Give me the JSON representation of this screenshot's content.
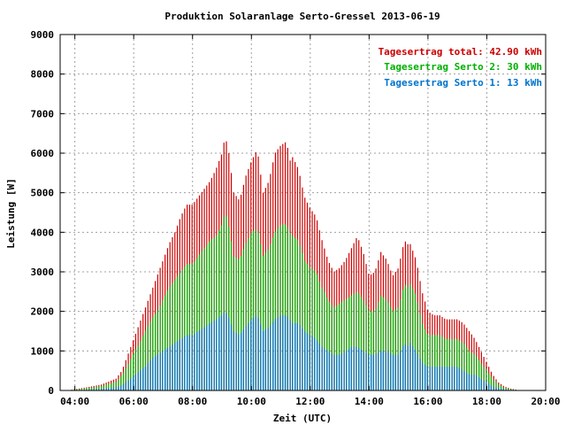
{
  "chart_data": {
    "type": "bar",
    "title": "Produktion Solaranlage Serto-Gressel 2013-06-19",
    "xlabel": "Zeit (UTC)",
    "ylabel": "Leistung [W]",
    "xlim": [
      3.5,
      20.0
    ],
    "ylim": [
      0,
      9000
    ],
    "x_ticks": [
      "04:00",
      "06:00",
      "08:00",
      "10:00",
      "12:00",
      "14:00",
      "16:00",
      "18:00",
      "20:00"
    ],
    "y_ticks": [
      "0",
      "1000",
      "2000",
      "3000",
      "4000",
      "5000",
      "6000",
      "7000",
      "8000",
      "9000"
    ],
    "grid": true,
    "legend_position": "top-right",
    "legend": [
      {
        "text": "Tagesertrag total: 42.90 kWh",
        "color": "#cc0000"
      },
      {
        "text": "Tagesertrag Serto 2: 30 kWh",
        "color": "#00b000"
      },
      {
        "text": "Tagesertrag Serto 1: 13 kWh",
        "color": "#0073cc"
      }
    ],
    "colors": {
      "total": "#cc0000",
      "serto2": "#00b000",
      "serto1": "#0073cc"
    },
    "x_hours": [
      3.9,
      4.4,
      4.9,
      5.4,
      5.6,
      5.8,
      6.0,
      6.2,
      6.4,
      6.6,
      6.8,
      7.0,
      7.2,
      7.4,
      7.6,
      7.8,
      8.0,
      8.2,
      8.4,
      8.6,
      8.8,
      9.0,
      9.1,
      9.2,
      9.4,
      9.6,
      9.8,
      10.0,
      10.2,
      10.4,
      10.6,
      10.8,
      11.0,
      11.2,
      11.3,
      11.4,
      11.6,
      11.8,
      12.0,
      12.2,
      12.4,
      12.6,
      12.8,
      13.0,
      13.2,
      13.4,
      13.6,
      13.8,
      14.0,
      14.2,
      14.4,
      14.6,
      14.8,
      15.0,
      15.2,
      15.3,
      15.4,
      15.6,
      15.8,
      16.0,
      16.2,
      16.4,
      16.6,
      16.8,
      17.0,
      17.2,
      17.4,
      17.6,
      17.8,
      18.0,
      18.2,
      18.4,
      18.6,
      18.8,
      19.0
    ],
    "series": [
      {
        "name": "Tagesertrag total",
        "values": [
          20,
          80,
          150,
          300,
          500,
          900,
          1300,
          1700,
          2100,
          2500,
          2900,
          3300,
          3700,
          4000,
          4400,
          4700,
          4700,
          4900,
          5100,
          5300,
          5600,
          6000,
          6400,
          6200,
          5000,
          4800,
          5400,
          5800,
          6100,
          5000,
          5300,
          6000,
          6200,
          6300,
          5800,
          5900,
          5600,
          4900,
          4600,
          4400,
          3800,
          3300,
          3000,
          3100,
          3300,
          3600,
          3900,
          3500,
          2900,
          3000,
          3500,
          3300,
          2900,
          3100,
          3800,
          3700,
          3700,
          3300,
          2500,
          2000,
          1900,
          1900,
          1800,
          1800,
          1800,
          1700,
          1500,
          1300,
          1000,
          700,
          400,
          200,
          100,
          50,
          20
        ]
      },
      {
        "name": "Tagesertrag Serto 2",
        "values": [
          15,
          60,
          110,
          220,
          380,
          650,
          950,
          1200,
          1500,
          1800,
          2000,
          2300,
          2600,
          2800,
          3000,
          3200,
          3200,
          3400,
          3600,
          3800,
          3900,
          4200,
          4500,
          4300,
          3400,
          3300,
          3700,
          4000,
          4100,
          3400,
          3600,
          4000,
          4200,
          4200,
          4000,
          3900,
          3800,
          3300,
          3100,
          3000,
          2600,
          2300,
          2100,
          2200,
          2300,
          2400,
          2500,
          2300,
          2000,
          2000,
          2400,
          2300,
          2000,
          2100,
          2700,
          2600,
          2700,
          2400,
          1700,
          1400,
          1400,
          1400,
          1300,
          1300,
          1300,
          1200,
          1000,
          900,
          700,
          500,
          300,
          150,
          70,
          35,
          15
        ]
      },
      {
        "name": "Tagesertrag Serto 1",
        "values": [
          5,
          20,
          40,
          80,
          130,
          250,
          350,
          500,
          600,
          800,
          900,
          1000,
          1100,
          1200,
          1300,
          1400,
          1400,
          1500,
          1600,
          1700,
          1800,
          1900,
          2000,
          1900,
          1500,
          1400,
          1600,
          1800,
          1900,
          1500,
          1600,
          1800,
          1900,
          1900,
          1800,
          1700,
          1700,
          1500,
          1400,
          1300,
          1100,
          1000,
          900,
          900,
          1000,
          1100,
          1100,
          1000,
          900,
          900,
          1000,
          1000,
          900,
          900,
          1200,
          1100,
          1200,
          1000,
          700,
          600,
          600,
          600,
          600,
          600,
          600,
          500,
          400,
          400,
          300,
          200,
          100,
          60,
          30,
          15,
          5
        ]
      }
    ]
  }
}
